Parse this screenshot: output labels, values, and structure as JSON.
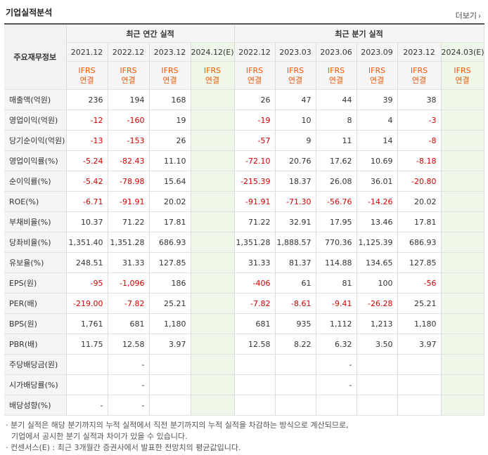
{
  "header": {
    "title": "기업실적분석",
    "more_label": "더보기",
    "more_icon": "chevron-right-icon"
  },
  "table": {
    "label_header": "주요재무정보",
    "groups": {
      "annual": "최근 연간 실적",
      "quarterly": "최근 분기 실적"
    },
    "periods": [
      "2021.12",
      "2022.12",
      "2023.12",
      "2024.12(E)",
      "2022.12",
      "2023.03",
      "2023.06",
      "2023.09",
      "2023.12",
      "2024.03(E)"
    ],
    "std_top": "IFRS",
    "std_bottom": "연결",
    "rows": [
      {
        "label": "매출액(억원)",
        "values": [
          "236",
          "194",
          "168",
          "",
          "26",
          "47",
          "44",
          "39",
          "38",
          ""
        ]
      },
      {
        "label": "영업이익(억원)",
        "values": [
          "-12",
          "-160",
          "19",
          "",
          "-19",
          "10",
          "8",
          "4",
          "-3",
          ""
        ]
      },
      {
        "label": "당기순이익(억원)",
        "values": [
          "-13",
          "-153",
          "26",
          "",
          "-57",
          "9",
          "11",
          "14",
          "-8",
          ""
        ]
      },
      {
        "label": "영업이익률(%)",
        "values": [
          "-5.24",
          "-82.43",
          "11.10",
          "",
          "-72.10",
          "20.76",
          "17.62",
          "10.69",
          "-8.18",
          ""
        ]
      },
      {
        "label": "순이익률(%)",
        "values": [
          "-5.42",
          "-78.98",
          "15.64",
          "",
          "-215.39",
          "18.37",
          "26.08",
          "36.01",
          "-20.80",
          ""
        ]
      },
      {
        "label": "ROE(%)",
        "values": [
          "-6.71",
          "-91.91",
          "20.02",
          "",
          "-91.91",
          "-71.30",
          "-56.76",
          "-14.26",
          "20.02",
          ""
        ]
      },
      {
        "label": "부채비율(%)",
        "values": [
          "10.37",
          "71.22",
          "17.81",
          "",
          "71.22",
          "32.91",
          "17.95",
          "13.46",
          "17.81",
          ""
        ]
      },
      {
        "label": "당좌비율(%)",
        "values": [
          "1,351.40",
          "1,351.28",
          "686.93",
          "",
          "1,351.28",
          "1,888.57",
          "770.36",
          "1,125.39",
          "686.93",
          ""
        ]
      },
      {
        "label": "유보율(%)",
        "values": [
          "248.51",
          "31.33",
          "127.85",
          "",
          "31.33",
          "81.37",
          "114.88",
          "134.65",
          "127.85",
          ""
        ]
      },
      {
        "label": "EPS(원)",
        "values": [
          "-95",
          "-1,096",
          "186",
          "",
          "-406",
          "61",
          "81",
          "100",
          "-56",
          ""
        ]
      },
      {
        "label": "PER(배)",
        "values": [
          "-219.00",
          "-7.82",
          "25.21",
          "",
          "-7.82",
          "-8.61",
          "-9.41",
          "-26.28",
          "25.21",
          ""
        ]
      },
      {
        "label": "BPS(원)",
        "values": [
          "1,761",
          "681",
          "1,180",
          "",
          "681",
          "935",
          "1,112",
          "1,213",
          "1,180",
          ""
        ]
      },
      {
        "label": "PBR(배)",
        "values": [
          "11.75",
          "12.58",
          "3.97",
          "",
          "12.58",
          "8.22",
          "6.32",
          "3.50",
          "3.97",
          ""
        ]
      },
      {
        "label": "주당배당금(원)",
        "values": [
          "",
          "-",
          "",
          "",
          "",
          "",
          "-",
          "",
          "",
          ""
        ]
      },
      {
        "label": "시가배당률(%)",
        "values": [
          "",
          "-",
          "",
          "",
          "",
          "",
          "-",
          "",
          "",
          ""
        ]
      },
      {
        "label": "배당성향(%)",
        "values": [
          "-",
          "-",
          "",
          "",
          "",
          "",
          "",
          "",
          "",
          ""
        ]
      }
    ]
  },
  "notes": [
    "· 분기 실적은 해당 분기까지의 누적 실적에서 직전 분기까지의 누적 실적을 차감하는 방식으로 계산되므로,",
    "기업에서 공시한 분기 실적과 차이가 있을 수 있습니다.",
    "· 컨센서스(E) : 최근 3개월간 증권사에서 발표한 전망치의 평균값입니다."
  ],
  "colors": {
    "negative": "#d60000",
    "ifrs": "#ee5a0a",
    "estimate_bg": "#eef7e8"
  }
}
